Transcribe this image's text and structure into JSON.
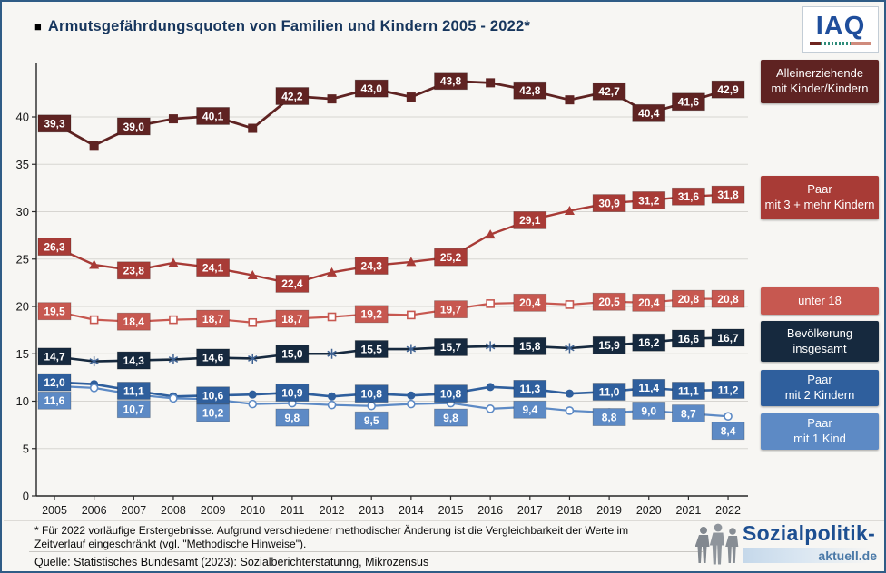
{
  "title_bullet": "■",
  "title": "Armutsgefährdungsquoten von Familien und Kindern 2005 - 2022*",
  "logo_iaq": {
    "text": "IAQ"
  },
  "footnote": {
    "line1": "* Für 2022 vorläufige Erstergebnisse. Aufgrund verschiedener methodischer Änderung ist die Vergleichbarkeit der Werte im",
    "line2": "Zeitverlauf eingeschränkt (vgl. \"Methodische Hinweise\")."
  },
  "source": "Quelle: Statistisches Bundesamt (2023): Sozialberichterstatunng, Mikrozensus",
  "brand": {
    "name": "Sozialpolitik-",
    "domain": "aktuell.de"
  },
  "chart_data": {
    "type": "line",
    "x": [
      2005,
      2006,
      2007,
      2008,
      2009,
      2010,
      2011,
      2012,
      2013,
      2014,
      2015,
      2016,
      2017,
      2018,
      2019,
      2020,
      2021,
      2022
    ],
    "ylim": [
      0,
      45
    ],
    "yticks": [
      0,
      5,
      10,
      15,
      20,
      25,
      30,
      35,
      40
    ],
    "grid": "horizontal",
    "legend_position": "right",
    "value_suffix": "%",
    "series": [
      {
        "slug": "alleinerziehende",
        "name_lines": [
          "Alleinerziehende",
          "mit Kinder/Kindern"
        ],
        "color": "#5f2322",
        "marker": "square",
        "values": [
          39.3,
          37.0,
          39.0,
          39.8,
          40.1,
          38.8,
          42.2,
          41.9,
          43.0,
          42.1,
          43.8,
          43.6,
          42.8,
          41.8,
          42.7,
          40.4,
          41.6,
          42.9
        ],
        "labels": [
          "39,3",
          null,
          "39,0",
          null,
          "40,1",
          null,
          "42,2",
          null,
          "43,0",
          null,
          "43,8",
          null,
          "42,8",
          null,
          "42,7",
          "40,4",
          "41,6",
          "42,9"
        ],
        "label_dy": [
          0,
          0,
          0,
          0,
          0,
          0,
          0,
          0,
          0,
          0,
          0,
          0,
          0,
          0,
          0,
          0,
          0,
          0
        ]
      },
      {
        "slug": "paar-3-mehr-kinder",
        "name_lines": [
          "Paar",
          "mit 3 + mehr Kindern"
        ],
        "color": "#a83b36",
        "marker": "triangle",
        "values": [
          26.3,
          24.4,
          23.8,
          24.6,
          24.1,
          23.3,
          22.4,
          23.6,
          24.3,
          24.7,
          25.2,
          27.6,
          29.1,
          30.1,
          30.9,
          31.2,
          31.6,
          31.8
        ],
        "labels": [
          "26,3",
          null,
          "23,8",
          null,
          "24,1",
          null,
          "22,4",
          null,
          "24,3",
          null,
          "25,2",
          null,
          "29,1",
          null,
          "30,9",
          "31,2",
          "31,6",
          "31,8"
        ],
        "label_dy": [
          0,
          0,
          0,
          0,
          0,
          0,
          0,
          0,
          0,
          0,
          0,
          0,
          0,
          0,
          0,
          0,
          0,
          0
        ]
      },
      {
        "slug": "unter-18",
        "name_lines": [
          "unter 18"
        ],
        "color": "#c75850",
        "marker": "open-square",
        "values": [
          19.5,
          18.6,
          18.4,
          18.6,
          18.7,
          18.3,
          18.7,
          18.9,
          19.2,
          19.1,
          19.7,
          20.3,
          20.4,
          20.2,
          20.5,
          20.4,
          20.8,
          20.8
        ],
        "labels": [
          "19,5",
          null,
          "18,4",
          null,
          "18,7",
          null,
          "18,7",
          null,
          "19,2",
          null,
          "19,7",
          null,
          "20,4",
          null,
          "20,5",
          "20,4",
          "20,8",
          "20,8"
        ],
        "label_dy": [
          0,
          0,
          0,
          0,
          0,
          0,
          0,
          0,
          0,
          0,
          0,
          0,
          0,
          0,
          0,
          0,
          0,
          0
        ]
      },
      {
        "slug": "bevoelkerung-insgesamt",
        "name_lines": [
          "Bevölkerung",
          "insgesamt"
        ],
        "color": "#16293e",
        "marker": "asterisk",
        "marker_color": "#3e6191",
        "values": [
          14.7,
          14.2,
          14.3,
          14.4,
          14.6,
          14.5,
          15.0,
          15.0,
          15.5,
          15.5,
          15.7,
          15.8,
          15.8,
          15.6,
          15.9,
          16.2,
          16.6,
          16.7
        ],
        "labels": [
          "14,7",
          null,
          "14,3",
          null,
          "14,6",
          null,
          "15,0",
          null,
          "15,5",
          null,
          "15,7",
          null,
          "15,8",
          null,
          "15,9",
          "16,2",
          "16,6",
          "16,7"
        ],
        "label_dy": [
          0,
          0,
          0,
          0,
          0,
          0,
          0,
          0,
          0,
          0,
          0,
          0,
          0,
          0,
          0,
          0,
          0,
          0
        ]
      },
      {
        "slug": "paar-2-kinder",
        "name_lines": [
          "Paar",
          "mit 2 Kindern"
        ],
        "color": "#2f5f9d",
        "marker": "circle",
        "values": [
          12.0,
          11.8,
          11.1,
          10.5,
          10.6,
          10.7,
          10.9,
          10.5,
          10.8,
          10.6,
          10.8,
          11.5,
          11.3,
          10.8,
          11.0,
          11.4,
          11.1,
          11.2
        ],
        "labels": [
          "12,0",
          null,
          "11,1",
          null,
          "10,6",
          null,
          "10,9",
          null,
          "10,8",
          null,
          "10,8",
          null,
          "11,3",
          null,
          "11,0",
          "11,4",
          "11,1",
          "11,2"
        ],
        "label_dy": [
          0,
          0,
          0,
          0,
          0,
          0,
          0,
          0,
          0,
          0,
          0,
          0,
          0,
          0,
          0,
          0,
          0,
          0
        ]
      },
      {
        "slug": "paar-1-kind",
        "name_lines": [
          "Paar",
          "mit 1 Kind"
        ],
        "color": "#5d8ac5",
        "marker": "open-circle",
        "values": [
          11.6,
          11.4,
          10.7,
          10.3,
          10.2,
          9.7,
          9.8,
          9.6,
          9.5,
          9.7,
          9.8,
          9.2,
          9.4,
          9.0,
          8.8,
          9.0,
          8.7,
          8.4
        ],
        "labels": [
          "11,6",
          null,
          "10,7",
          null,
          "10,2",
          null,
          "9,8",
          null,
          "9,5",
          null,
          "9,8",
          null,
          "9,4",
          null,
          "8,8",
          "9,0",
          "8,7",
          "8,4"
        ],
        "label_dy": [
          16,
          0,
          16,
          0,
          15,
          0,
          16,
          0,
          16,
          0,
          16,
          0,
          3,
          0,
          5,
          0,
          0,
          16
        ]
      }
    ]
  }
}
